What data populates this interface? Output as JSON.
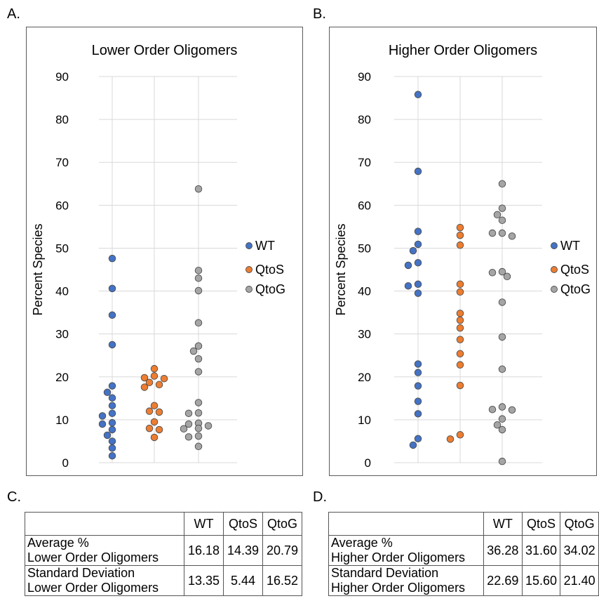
{
  "panels": {
    "a": "A.",
    "b": "B.",
    "c": "C.",
    "d": "D."
  },
  "chart_data": [
    {
      "type": "scatter",
      "title": "Lower Order Oligomers",
      "ylabel": "Percent Species",
      "xlabel": "",
      "ylim": [
        0,
        90
      ],
      "yticks": [
        "0",
        "10",
        "20",
        "30",
        "40",
        "50",
        "60",
        "70",
        "80",
        "90"
      ],
      "grid": true,
      "legend": "right",
      "series": [
        {
          "name": "WT",
          "color": "#4472c4",
          "values": [
            47.6,
            40.6,
            34.4,
            27.5,
            17.9,
            16.4,
            15.1,
            13.3,
            11.5,
            10.9,
            9.3,
            9.0,
            7.7,
            6.4,
            5.0,
            3.4,
            1.6
          ]
        },
        {
          "name": "QtoS",
          "color": "#ed7d31",
          "values": [
            21.9,
            20.2,
            19.8,
            19.6,
            18.7,
            18.2,
            17.6,
            13.3,
            12.0,
            11.8,
            9.5,
            8.0,
            7.7,
            5.9
          ]
        },
        {
          "name": "QtoG",
          "color": "#a5a5a5",
          "values": [
            63.8,
            44.8,
            43.0,
            40.1,
            32.6,
            27.2,
            26.0,
            24.2,
            21.2,
            14.0,
            11.6,
            11.5,
            9.2,
            9.0,
            8.6,
            8.0,
            7.9,
            6.2,
            6.0,
            3.8
          ]
        }
      ]
    },
    {
      "type": "scatter",
      "title": "Higher Order Oligomers",
      "ylabel": "Percent Species",
      "xlabel": "",
      "ylim": [
        0,
        90
      ],
      "yticks": [
        "0",
        "10",
        "20",
        "30",
        "40",
        "50",
        "60",
        "70",
        "80",
        "90"
      ],
      "grid": true,
      "legend": "right",
      "series": [
        {
          "name": "WT",
          "color": "#4472c4",
          "values": [
            85.8,
            67.9,
            53.9,
            50.9,
            49.4,
            46.6,
            46.0,
            41.6,
            41.2,
            39.5,
            23.0,
            21.0,
            17.9,
            14.3,
            11.4,
            5.6,
            4.1
          ]
        },
        {
          "name": "QtoS",
          "color": "#ed7d31",
          "values": [
            54.8,
            53.0,
            50.7,
            41.6,
            39.8,
            34.8,
            33.2,
            31.4,
            28.7,
            25.4,
            22.8,
            18.0,
            6.5,
            5.5
          ]
        },
        {
          "name": "QtoG",
          "color": "#a5a5a5",
          "values": [
            65.0,
            59.3,
            57.8,
            56.5,
            53.5,
            53.5,
            52.8,
            44.5,
            44.3,
            43.4,
            37.4,
            29.3,
            21.8,
            13.0,
            12.4,
            12.3,
            10.2,
            8.8,
            7.7,
            0.3
          ]
        }
      ]
    }
  ],
  "tables": [
    {
      "headers": [
        "WT",
        "QtoS",
        "QtoG"
      ],
      "rows": [
        {
          "label_line1": "Average %",
          "label_line2": "Lower Order Oligomers",
          "values": [
            "16.18",
            "14.39",
            "20.79"
          ]
        },
        {
          "label_line1": "Standard Deviation",
          "label_line2": "Lower Order Oligomers",
          "values": [
            "13.35",
            "5.44",
            "16.52"
          ]
        }
      ]
    },
    {
      "headers": [
        "WT",
        "QtoS",
        "QtoG"
      ],
      "rows": [
        {
          "label_line1": "Average %",
          "label_line2": "Higher Order Oligomers",
          "values": [
            "36.28",
            "31.60",
            "34.02"
          ]
        },
        {
          "label_line1": "Standard Deviation",
          "label_line2": "Higher Order Oligomers",
          "values": [
            "22.69",
            "15.60",
            "21.40"
          ]
        }
      ]
    }
  ]
}
